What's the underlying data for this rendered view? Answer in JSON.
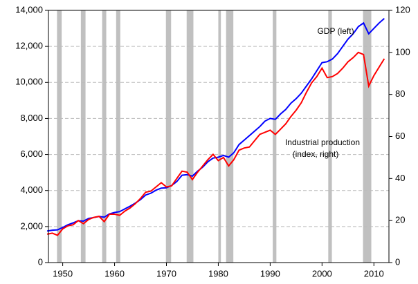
{
  "chart_data": {
    "type": "line",
    "x": [
      1947,
      1948,
      1949,
      1950,
      1951,
      1952,
      1953,
      1954,
      1955,
      1956,
      1957,
      1958,
      1959,
      1960,
      1961,
      1962,
      1963,
      1964,
      1965,
      1966,
      1967,
      1968,
      1969,
      1970,
      1971,
      1972,
      1973,
      1974,
      1975,
      1976,
      1977,
      1978,
      1979,
      1980,
      1981,
      1982,
      1983,
      1984,
      1985,
      1986,
      1987,
      1988,
      1989,
      1990,
      1991,
      1992,
      1993,
      1994,
      1995,
      1996,
      1997,
      1998,
      1999,
      2000,
      2001,
      2002,
      2003,
      2004,
      2005,
      2006,
      2007,
      2008,
      2009,
      2010,
      2011,
      2012
    ],
    "series": [
      {
        "name": "GDP (left)",
        "color": "#0000ff",
        "axis": "y",
        "values": [
          1750,
          1800,
          1820,
          1950,
          2100,
          2200,
          2320,
          2300,
          2450,
          2500,
          2560,
          2520,
          2700,
          2780,
          2830,
          2980,
          3130,
          3300,
          3500,
          3750,
          3850,
          4020,
          4130,
          4150,
          4280,
          4500,
          4850,
          4880,
          4800,
          5070,
          5300,
          5600,
          5800,
          5850,
          5950,
          5850,
          6100,
          6550,
          6800,
          7050,
          7300,
          7550,
          7850,
          8000,
          7950,
          8250,
          8500,
          8850,
          9100,
          9400,
          9800,
          10200,
          10650,
          11100,
          11150,
          11300,
          11600,
          12000,
          12400,
          12700,
          13100,
          13300,
          12700,
          13000,
          13300,
          13550
        ]
      },
      {
        "name": "Industrial production",
        "color": "#ff0000",
        "axis": "y2",
        "values": [
          13.5,
          14,
          13,
          16,
          17.5,
          18,
          20,
          18.5,
          20.5,
          21.5,
          22,
          19.5,
          23,
          23,
          22.5,
          24.5,
          26,
          28,
          30.5,
          33.5,
          34,
          36,
          38,
          36,
          36.5,
          40,
          43.5,
          43,
          39.5,
          43,
          46,
          49,
          51.5,
          48.5,
          50,
          46,
          49,
          53.5,
          54.5,
          55,
          58,
          61,
          62,
          63,
          61,
          63.5,
          66,
          69.5,
          72.5,
          76,
          81,
          85.5,
          88.5,
          92.5,
          88,
          88.5,
          90,
          92.5,
          95.5,
          97.5,
          100,
          99,
          84,
          89,
          93,
          97
        ]
      }
    ],
    "annotations": [
      "Industrial production",
      "(index, right)"
    ],
    "recessions": [
      [
        1948.9,
        1949.8
      ],
      [
        1953.5,
        1954.4
      ],
      [
        1957.6,
        1958.4
      ],
      [
        1960.3,
        1961.1
      ],
      [
        1969.9,
        1970.9
      ],
      [
        1973.9,
        1975.2
      ],
      [
        1980.0,
        1980.5
      ],
      [
        1981.5,
        1982.9
      ],
      [
        1990.5,
        1991.2
      ],
      [
        2001.2,
        2001.9
      ],
      [
        2007.9,
        2009.5
      ]
    ],
    "recession_color": "#c0c0c0",
    "xlim": [
      1947.25,
      2012.9
    ],
    "xticks": [
      1950,
      1960,
      1970,
      1980,
      1990,
      2000,
      2010
    ],
    "ylim": [
      0,
      14000
    ],
    "yticks": [
      0,
      {
        "value": 2000,
        "label": "2,000"
      },
      {
        "value": 4000,
        "label": "4,000"
      },
      {
        "value": 6000,
        "label": "6,000"
      },
      {
        "value": 8000,
        "label": "8,000"
      },
      {
        "value": 10000,
        "label": "10,000"
      },
      {
        "value": 12000,
        "label": "12,000"
      },
      {
        "value": 14000,
        "label": "14,000"
      }
    ],
    "y2lim": [
      0,
      120
    ],
    "y2ticks": [
      0,
      20,
      40,
      60,
      80,
      100,
      120
    ],
    "grid": true
  }
}
